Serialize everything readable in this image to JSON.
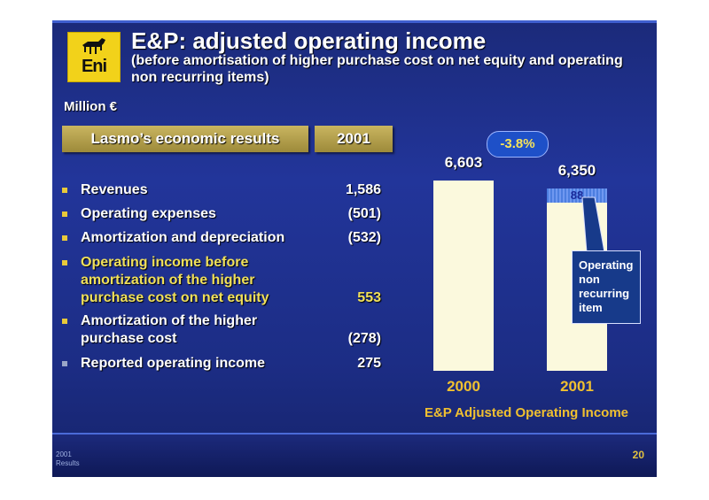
{
  "brand": {
    "logo_text": "Eni"
  },
  "title": "E&P: adjusted operating income",
  "subtitle": "(before amortisation of higher purchase cost on net equity and operating non recurring items)",
  "units": "Million €",
  "table": {
    "header_label": "Lasmo’s economic results",
    "header_year": "2001",
    "rows": [
      {
        "label": "Revenues",
        "value": "1,586",
        "highlight": false
      },
      {
        "label": "Operating expenses",
        "value": "(501)",
        "highlight": false
      },
      {
        "label": "Amortization and depreciation",
        "value": "(532)",
        "highlight": false
      },
      {
        "label": "Operating income before amortization of the higher purchase cost on net equity",
        "value": "553",
        "highlight": true
      },
      {
        "label": "Amortization of the higher purchase cost",
        "value": "(278)",
        "highlight": false
      },
      {
        "label": "Reported operating income",
        "value": "275",
        "highlight": false
      }
    ]
  },
  "chart_data": {
    "type": "bar",
    "title": "E&P Adjusted Operating Income",
    "categories": [
      "2000",
      "2001"
    ],
    "values": [
      6603,
      6350
    ],
    "value_labels": [
      "6,603",
      "6,350"
    ],
    "stacked_top_segment": {
      "category": "2001",
      "value": 88,
      "label": "88"
    },
    "change_label": "-3.8%",
    "annotation": "Operating non recurring item",
    "colors": {
      "bar": "#fbf9dd",
      "segment": "#5c88e8",
      "category": "#f0c030"
    }
  },
  "footer": {
    "meta": "2001 Results",
    "page": "20"
  }
}
